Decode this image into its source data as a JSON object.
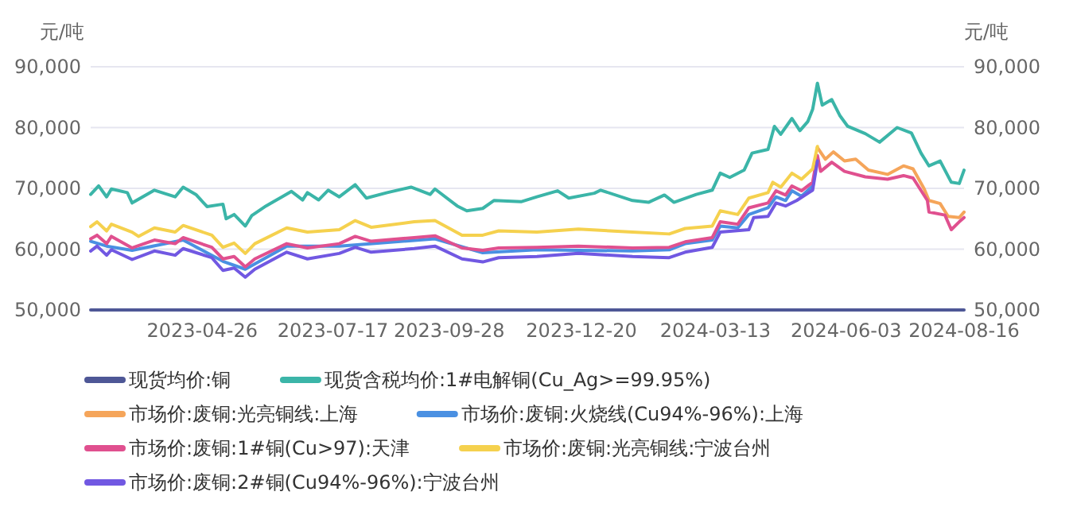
{
  "chart_data": {
    "type": "line",
    "ylabel": "元/吨",
    "y2label": "元/吨",
    "xlim": [
      "2023-02-15",
      "2024-08-16"
    ],
    "xticks": [
      {
        "value": "2023-04-26",
        "label": "2023-04-26"
      },
      {
        "value": "2023-07-17",
        "label": "2023-07-17"
      },
      {
        "value": "2023-09-28",
        "label": "2023-09-28"
      },
      {
        "value": "2023-12-20",
        "label": "2023-12-20"
      },
      {
        "value": "2024-03-13",
        "label": "2024-03-13"
      },
      {
        "value": "2024-06-03",
        "label": "2024-06-03"
      },
      {
        "value": "2024-08-16",
        "label": "2024-08-16"
      }
    ],
    "ylim": [
      50000,
      90000
    ],
    "yticks": [
      {
        "value": 50000,
        "label": "50,000"
      },
      {
        "value": 60000,
        "label": "60,000"
      },
      {
        "value": 70000,
        "label": "70,000"
      },
      {
        "value": 80000,
        "label": "80,000"
      },
      {
        "value": 90000,
        "label": "90,000"
      }
    ],
    "y2lim": [
      50000,
      90000
    ],
    "y2ticks": [
      {
        "value": 50000,
        "label": "50,000"
      },
      {
        "value": 60000,
        "label": "60,000"
      },
      {
        "value": 70000,
        "label": "70,000"
      },
      {
        "value": 80000,
        "label": "80,000"
      },
      {
        "value": 90000,
        "label": "90,000"
      }
    ],
    "grid": "y",
    "legend": "bottom",
    "marker": "none",
    "line_style": "solid",
    "series": [
      {
        "name": "现货均价:铜",
        "color": "#4e5796",
        "x": [
          "2023-02-15",
          "2024-08-16"
        ],
        "values": [
          50000,
          50000
        ]
      },
      {
        "name": "现货含税均价:1#电解铜(Cu_Ag>=99.95%)",
        "color": "#3bb5a8",
        "x": [
          "2023-02-15",
          "2023-02-20",
          "2023-02-25",
          "2023-02-28",
          "2023-03-10",
          "2023-03-13",
          "2023-03-27",
          "2023-04-09",
          "2023-04-14",
          "2023-04-22",
          "2023-04-29",
          "2023-05-09",
          "2023-05-11",
          "2023-05-16",
          "2023-05-23",
          "2023-05-27",
          "2023-06-05",
          "2023-06-15",
          "2023-06-21",
          "2023-06-28",
          "2023-07-01",
          "2023-07-08",
          "2023-07-14",
          "2023-07-21",
          "2023-07-31",
          "2023-08-07",
          "2023-08-20",
          "2023-09-04",
          "2023-09-16",
          "2023-09-19",
          "2023-10-03",
          "2023-10-09",
          "2023-10-19",
          "2023-10-26",
          "2023-11-12",
          "2023-11-22",
          "2023-12-05",
          "2023-12-12",
          "2023-12-28",
          "2024-01-01",
          "2024-01-21",
          "2024-01-31",
          "2024-02-10",
          "2024-02-16",
          "2024-03-01",
          "2024-03-11",
          "2024-03-16",
          "2024-03-22",
          "2024-03-31",
          "2024-04-05",
          "2024-04-15",
          "2024-04-19",
          "2024-04-23",
          "2024-04-30",
          "2024-05-05",
          "2024-05-10",
          "2024-05-13",
          "2024-05-16",
          "2024-05-19",
          "2024-05-25",
          "2024-05-30",
          "2024-06-04",
          "2024-06-15",
          "2024-06-24",
          "2024-07-05",
          "2024-07-14",
          "2024-07-20",
          "2024-07-25",
          "2024-08-01",
          "2024-08-08",
          "2024-08-13",
          "2024-08-16"
        ],
        "values": [
          69000,
          70400,
          68600,
          69900,
          69300,
          67600,
          69700,
          68600,
          70200,
          69000,
          67000,
          67400,
          65000,
          65700,
          63800,
          65500,
          67100,
          68600,
          69500,
          68100,
          69300,
          68100,
          69700,
          68600,
          70600,
          68400,
          69300,
          70200,
          69000,
          69900,
          67100,
          66300,
          66700,
          68000,
          67800,
          68600,
          69600,
          68400,
          69200,
          69700,
          68000,
          67700,
          68900,
          67700,
          69000,
          69700,
          72500,
          71800,
          73000,
          75800,
          76400,
          80200,
          78900,
          81500,
          79500,
          81000,
          83000,
          87300,
          83700,
          84600,
          82000,
          80200,
          79000,
          77600,
          80000,
          79100,
          75800,
          73700,
          74500,
          71000,
          70800,
          73000
        ]
      },
      {
        "name": "市场价:废铜:光亮铜线:上海",
        "color": "#f5a55a",
        "x": [
          "2024-05-16",
          "2024-05-21",
          "2024-05-26",
          "2024-06-02",
          "2024-06-09",
          "2024-06-17",
          "2024-06-29",
          "2024-07-09",
          "2024-07-15",
          "2024-07-22",
          "2024-07-25",
          "2024-08-01",
          "2024-08-06",
          "2024-08-13",
          "2024-08-16"
        ],
        "values": [
          76700,
          74800,
          76000,
          74500,
          74800,
          73000,
          72300,
          73700,
          73200,
          69900,
          68000,
          67500,
          65400,
          65200,
          66100
        ]
      },
      {
        "name": "市场价:废铜:火烧线(Cu94%-96%):上海",
        "color": "#4a90e2",
        "x": [
          "2023-02-15",
          "2023-02-25",
          "2023-03-13",
          "2023-04-14",
          "2023-05-09",
          "2023-05-23",
          "2023-06-18",
          "2023-07-21",
          "2023-09-19",
          "2023-10-19",
          "2023-11-22",
          "2024-01-21",
          "2024-02-13",
          "2024-02-23",
          "2024-03-11",
          "2024-03-16",
          "2024-03-27",
          "2024-04-03",
          "2024-04-15",
          "2024-04-20",
          "2024-04-26",
          "2024-04-30",
          "2024-05-06",
          "2024-05-13",
          "2024-05-16"
        ],
        "values": [
          61300,
          60500,
          59800,
          61500,
          58000,
          56700,
          60500,
          60500,
          61700,
          59400,
          59900,
          59700,
          59900,
          60900,
          61500,
          63800,
          63500,
          65700,
          66800,
          68600,
          68000,
          69600,
          68700,
          70400,
          74800
        ]
      },
      {
        "name": "市场价:废铜:1#铜(Cu>97):天津",
        "color": "#e0508f",
        "x": [
          "2023-02-15",
          "2023-02-19",
          "2023-02-25",
          "2023-02-28",
          "2023-03-13",
          "2023-03-27",
          "2023-04-09",
          "2023-04-14",
          "2023-05-02",
          "2023-05-09",
          "2023-05-16",
          "2023-05-23",
          "2023-05-29",
          "2023-06-18",
          "2023-07-01",
          "2023-07-21",
          "2023-07-31",
          "2023-08-10",
          "2023-09-06",
          "2023-09-19",
          "2023-10-06",
          "2023-10-19",
          "2023-10-29",
          "2023-11-22",
          "2023-12-18",
          "2024-01-21",
          "2024-02-13",
          "2024-02-23",
          "2024-03-11",
          "2024-03-16",
          "2024-03-27",
          "2024-04-03",
          "2024-04-15",
          "2024-04-20",
          "2024-04-26",
          "2024-04-30",
          "2024-05-06",
          "2024-05-13",
          "2024-05-16",
          "2024-05-18",
          "2024-05-25",
          "2024-06-02",
          "2024-06-15",
          "2024-06-29",
          "2024-07-09",
          "2024-07-15",
          "2024-07-24",
          "2024-07-25",
          "2024-08-04",
          "2024-08-08",
          "2024-08-13",
          "2024-08-16"
        ],
        "values": [
          61700,
          62300,
          60900,
          62100,
          60200,
          61500,
          60900,
          61900,
          60300,
          58400,
          58800,
          57100,
          58400,
          60900,
          60200,
          60900,
          62100,
          61300,
          61900,
          62200,
          60200,
          59800,
          60200,
          60300,
          60500,
          60200,
          60300,
          61200,
          61900,
          64500,
          64100,
          66800,
          67600,
          69600,
          68900,
          70400,
          69600,
          71000,
          75400,
          72800,
          74300,
          72800,
          71900,
          71500,
          72100,
          71700,
          68000,
          66100,
          65600,
          63200,
          64500,
          65200
        ]
      },
      {
        "name": "市场价:废铜:光亮铜线:宁波台州",
        "color": "#f5d14e",
        "x": [
          "2023-02-15",
          "2023-02-19",
          "2023-02-25",
          "2023-02-28",
          "2023-03-13",
          "2023-03-17",
          "2023-03-27",
          "2023-04-09",
          "2023-04-14",
          "2023-05-02",
          "2023-05-09",
          "2023-05-16",
          "2023-05-23",
          "2023-05-29",
          "2023-06-18",
          "2023-07-01",
          "2023-07-21",
          "2023-07-31",
          "2023-08-10",
          "2023-09-06",
          "2023-09-19",
          "2023-10-06",
          "2023-10-19",
          "2023-10-29",
          "2023-11-22",
          "2023-12-18",
          "2024-01-21",
          "2024-02-13",
          "2024-02-23",
          "2024-03-11",
          "2024-03-16",
          "2024-03-27",
          "2024-04-03",
          "2024-04-15",
          "2024-04-18",
          "2024-04-23",
          "2024-04-30",
          "2024-05-06",
          "2024-05-13",
          "2024-05-16"
        ],
        "values": [
          63700,
          64500,
          63000,
          64100,
          62800,
          62100,
          63500,
          62800,
          63900,
          62300,
          60300,
          61000,
          59300,
          60900,
          63500,
          62800,
          63200,
          64700,
          63600,
          64500,
          64700,
          62300,
          62300,
          63000,
          62800,
          63300,
          62800,
          62500,
          63400,
          63800,
          66300,
          65700,
          68400,
          69300,
          71000,
          70200,
          72500,
          71500,
          73200,
          76900
        ]
      },
      {
        "name": "市场价:废铜:2#铜(Cu94%-96%):宁波台州",
        "color": "#7158e2",
        "x": [
          "2023-02-15",
          "2023-02-19",
          "2023-02-25",
          "2023-02-28",
          "2023-03-13",
          "2023-03-27",
          "2023-04-09",
          "2023-04-14",
          "2023-05-02",
          "2023-05-09",
          "2023-05-16",
          "2023-05-23",
          "2023-05-29",
          "2023-06-18",
          "2023-07-01",
          "2023-07-21",
          "2023-07-31",
          "2023-08-10",
          "2023-09-06",
          "2023-09-19",
          "2023-10-06",
          "2023-10-19",
          "2023-10-29",
          "2023-11-22",
          "2023-12-18",
          "2024-01-21",
          "2024-02-13",
          "2024-02-23",
          "2024-03-11",
          "2024-03-16",
          "2024-04-03",
          "2024-04-06",
          "2024-04-15",
          "2024-04-20",
          "2024-04-26",
          "2024-05-03",
          "2024-05-13",
          "2024-05-16"
        ],
        "values": [
          59700,
          60500,
          59000,
          59900,
          58300,
          59700,
          59000,
          60100,
          58600,
          56500,
          56900,
          55400,
          56700,
          59500,
          58400,
          59300,
          60300,
          59500,
          60100,
          60500,
          58400,
          57900,
          58600,
          58800,
          59300,
          58800,
          58600,
          59500,
          60300,
          62800,
          63200,
          65200,
          65400,
          67600,
          67100,
          68000,
          69700,
          74500
        ]
      }
    ]
  }
}
